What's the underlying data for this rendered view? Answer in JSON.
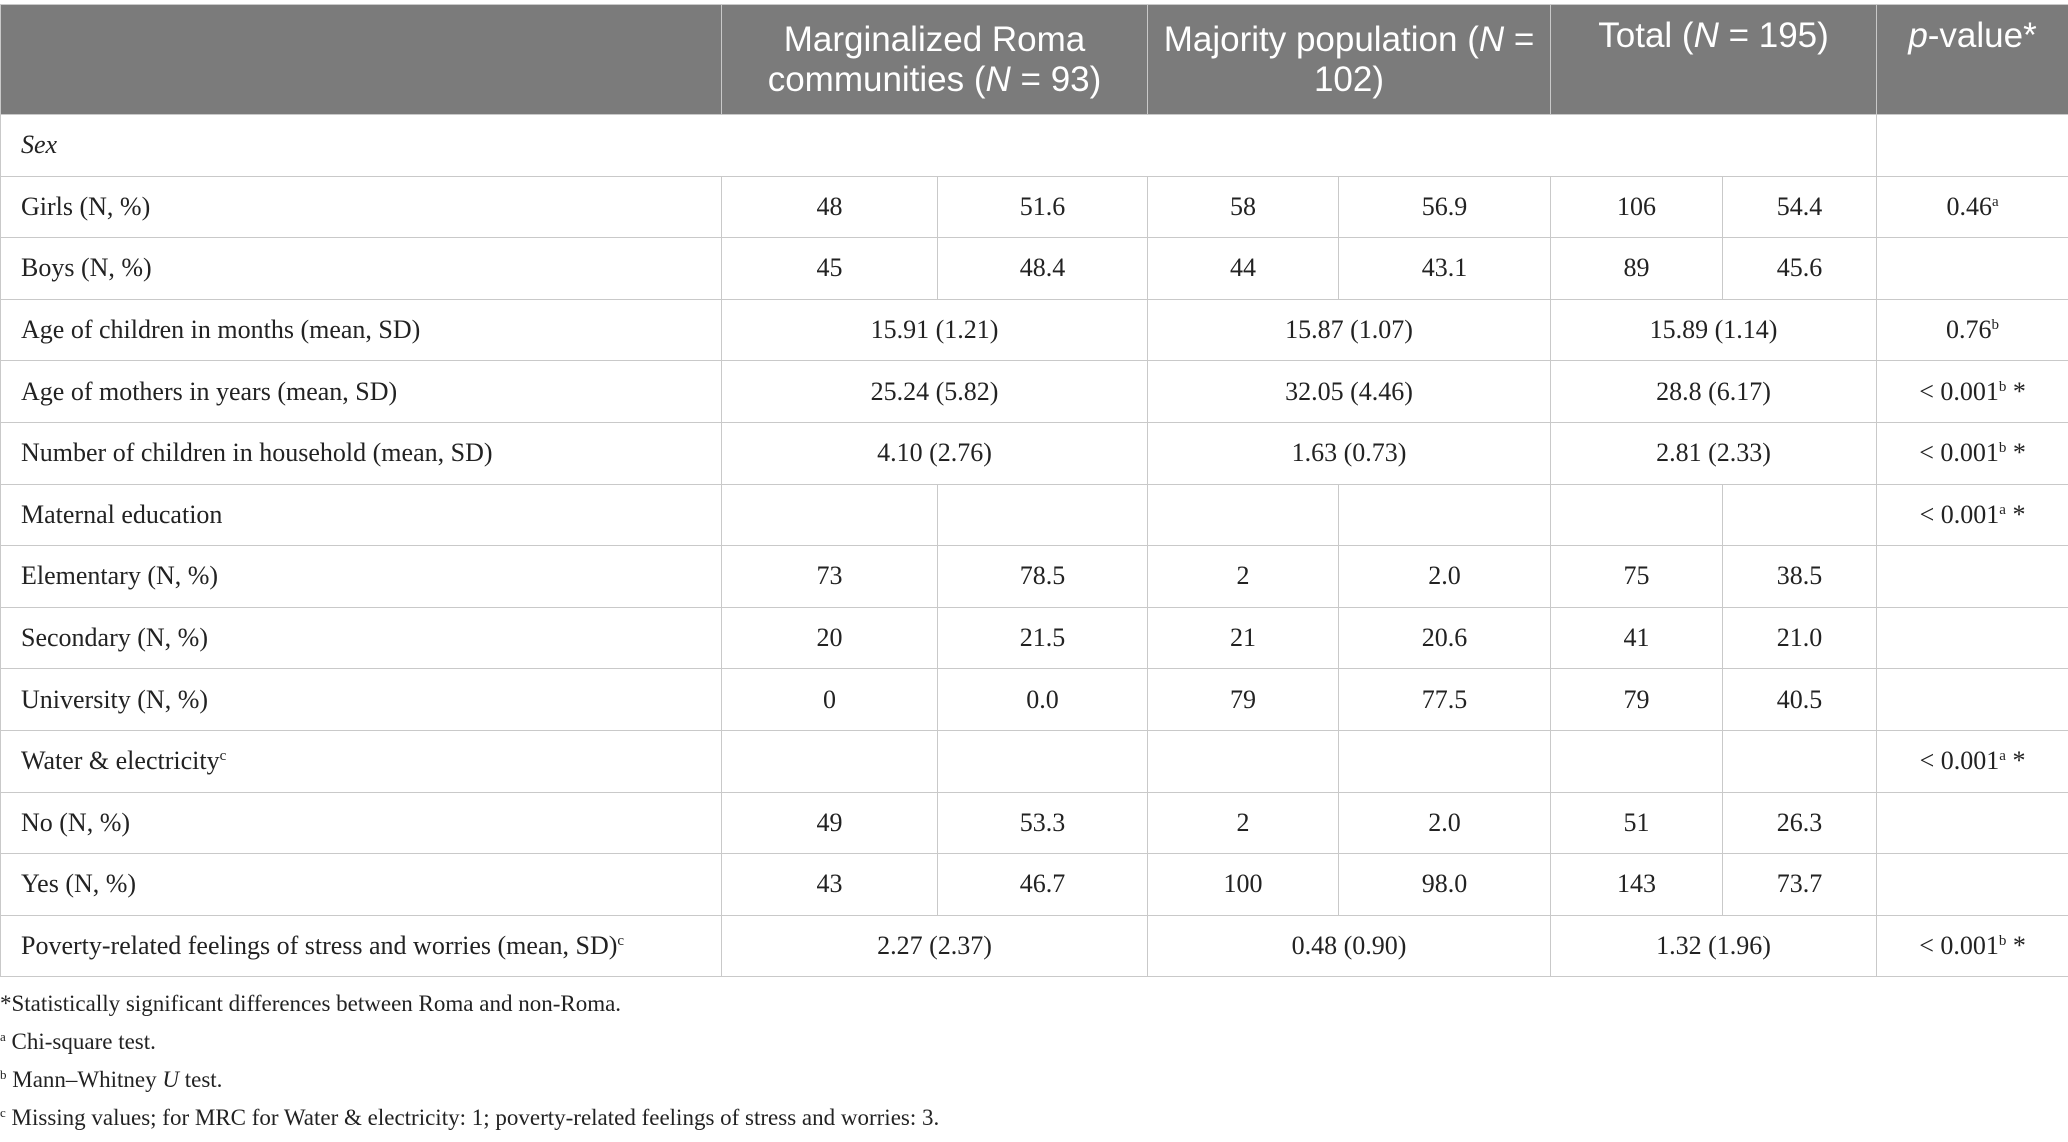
{
  "table": {
    "headers": {
      "stub": "",
      "roma": {
        "pre": "Marginalized Roma communities (",
        "var": "N",
        "post": " = 93)"
      },
      "majority": {
        "pre": "Majority population (",
        "var": "N",
        "post": " = 102)"
      },
      "total": {
        "pre": "Total (",
        "var": "N",
        "post": " = 195)"
      },
      "pvalue": {
        "var": "p",
        "post": "-value*"
      }
    },
    "rows": {
      "sex": {
        "label": ""
      },
      "girls": {
        "label": "Girls (N, %)",
        "c1": "48",
        "c2": "51.6",
        "c3": "58",
        "c4": "56.9",
        "c5": "106",
        "c6": "54.4",
        "p": "0.46",
        "p_sup": "a",
        "p_suffix": ""
      },
      "boys": {
        "label": "Boys (N, %)",
        "c1": "45",
        "c2": "48.4",
        "c3": "44",
        "c4": "43.1",
        "c5": "89",
        "c6": "45.6",
        "p": ""
      },
      "age_children": {
        "label": "Age of children in months (mean, SD)",
        "roma": "15.91 (1.21)",
        "majority": "15.87 (1.07)",
        "total": "15.89 (1.14)",
        "p": "0.76",
        "p_sup": "b",
        "p_suffix": ""
      },
      "age_mothers": {
        "label": "Age of mothers in years (mean, SD)",
        "roma": "25.24 (5.82)",
        "majority": "32.05 (4.46)",
        "total": "28.8 (6.17)",
        "p": "< 0.001",
        "p_sup": "b",
        "p_suffix": " *"
      },
      "num_children": {
        "label": "Number of children in household (mean, SD)",
        "roma": "4.10 (2.76)",
        "majority": "1.63 (0.73)",
        "total": "2.81 (2.33)",
        "p": "< 0.001",
        "p_sup": "b",
        "p_suffix": " *"
      },
      "maternal_education": {
        "label": "Maternal education",
        "p": "< 0.001",
        "p_sup": "a",
        "p_suffix": " *"
      },
      "elementary": {
        "label": "Elementary (N, %)",
        "c1": "73",
        "c2": "78.5",
        "c3": "2",
        "c4": "2.0",
        "c5": "75",
        "c6": "38.5",
        "p": ""
      },
      "secondary": {
        "label": "Secondary (N, %)",
        "c1": "20",
        "c2": "21.5",
        "c3": "21",
        "c4": "20.6",
        "c5": "41",
        "c6": "21.0",
        "p": ""
      },
      "university": {
        "label": "University (N, %)",
        "c1": "0",
        "c2": "0.0",
        "c3": "79",
        "c4": "77.5",
        "c5": "79",
        "c6": "40.5",
        "p": ""
      },
      "water": {
        "label": "Water & electricity",
        "label_sup": "c",
        "p": "< 0.001",
        "p_sup": "a",
        "p_suffix": " *"
      },
      "no": {
        "label": "No (N, %)",
        "c1": "49",
        "c2": "53.3",
        "c3": "2",
        "c4": "2.0",
        "c5": "51",
        "c6": "26.3",
        "p": ""
      },
      "yes": {
        "label": "Yes (N, %)",
        "c1": "43",
        "c2": "46.7",
        "c3": "100",
        "c4": "98.0",
        "c5": "143",
        "c6": "73.7",
        "p": ""
      },
      "poverty": {
        "label": "Poverty-related feelings of stress and worries (mean, SD)",
        "label_sup": "c",
        "roma": "2.27 (2.37)",
        "majority": "0.48 (0.90)",
        "total": "1.32 (1.96)",
        "p": "< 0.001",
        "p_sup": "b",
        "p_suffix": " *"
      }
    },
    "sex_section_label": "Sex"
  },
  "footnotes": {
    "star": "*Statistically significant differences between Roma and non-Roma.",
    "a_mark": "a",
    "a_text": " Chi-square test.",
    "b_mark": "b",
    "b_pre": " Mann–Whitney ",
    "b_var": "U",
    "b_post": " test.",
    "c_mark": "c",
    "c_text": " Missing values; for MRC for Water & electricity: 1; poverty-related feelings of stress and worries: 3."
  }
}
